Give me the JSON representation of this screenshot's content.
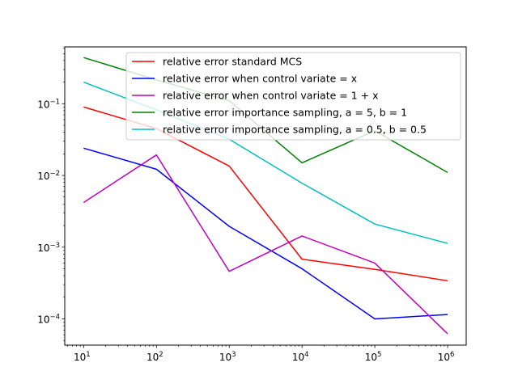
{
  "chart_data": {
    "type": "line",
    "title": "",
    "xlabel": "",
    "ylabel": "",
    "xscale": "log",
    "yscale": "log",
    "xlim": [
      5.5,
      1800000
    ],
    "ylim": [
      4.3e-05,
      0.62
    ],
    "grid": false,
    "legend_position": "upper-right",
    "x": [
      10,
      100,
      1000,
      10000,
      100000,
      1000000
    ],
    "x_tick_labels": [
      {
        "base": "10",
        "exp": "1",
        "value": 10
      },
      {
        "base": "10",
        "exp": "2",
        "value": 100
      },
      {
        "base": "10",
        "exp": "3",
        "value": 1000
      },
      {
        "base": "10",
        "exp": "4",
        "value": 10000
      },
      {
        "base": "10",
        "exp": "5",
        "value": 100000
      },
      {
        "base": "10",
        "exp": "6",
        "value": 1000000
      }
    ],
    "y_tick_labels": [
      {
        "base": "10",
        "exp": "−4",
        "value": 0.0001
      },
      {
        "base": "10",
        "exp": "−3",
        "value": 0.001
      },
      {
        "base": "10",
        "exp": "−2",
        "value": 0.01
      },
      {
        "base": "10",
        "exp": "−1",
        "value": 0.1
      }
    ],
    "series": [
      {
        "name": "relative error standard MCS",
        "color": "#ff0000",
        "values": [
          0.09,
          0.045,
          0.0135,
          0.00068,
          0.00049,
          0.00034
        ]
      },
      {
        "name": "relative error when control variate = x",
        "color": "#0000ff",
        "values": [
          0.024,
          0.0122,
          0.00195,
          0.0005,
          0.0001,
          0.000115
        ]
      },
      {
        "name": "relative error when control variate = 1 + x",
        "color": "#bf00bf",
        "values": [
          0.0042,
          0.0193,
          0.00046,
          0.00143,
          0.0006,
          6.2e-05
        ]
      },
      {
        "name": "relative error importance sampling, a = 5, b = 1",
        "color": "#008000",
        "values": [
          0.44,
          0.215,
          0.11,
          0.015,
          0.042,
          0.011
        ]
      },
      {
        "name": "relative error importance sampling, a = 0.5, b = 0.5",
        "color": "#00bfbf",
        "values": [
          0.2,
          0.082,
          0.032,
          0.0078,
          0.0021,
          0.00113
        ]
      }
    ]
  }
}
